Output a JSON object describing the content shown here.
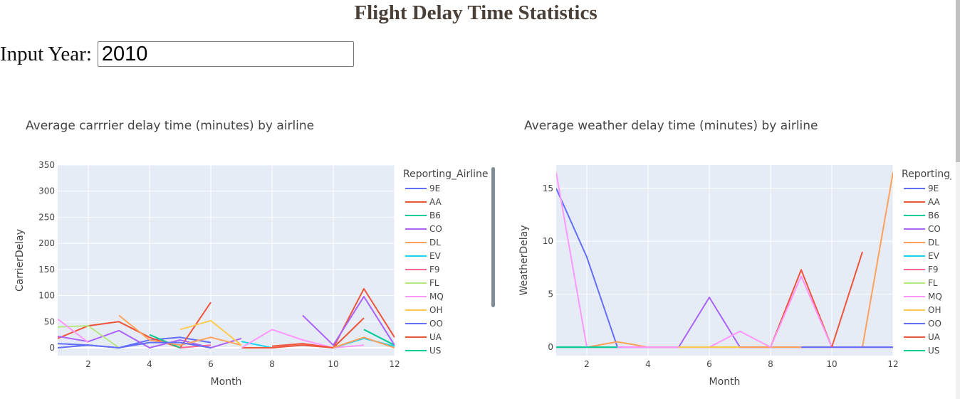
{
  "page": {
    "title": "Flight Delay Time Statistics",
    "year_label": "Input Year:",
    "year_value": "2010"
  },
  "colors": {
    "9E": "#636efa",
    "AA": "#EF553B",
    "B6": "#00cc96",
    "CO": "#ab63fa",
    "DL": "#FFA15A",
    "EV": "#19d3f3",
    "F9": "#FF6692",
    "FL": "#B6E880",
    "MQ": "#FF97FF",
    "OH": "#FECB52",
    "OO": "#636efa",
    "UA": "#EF553B",
    "US": "#00cc96"
  },
  "chart_data": [
    {
      "type": "line",
      "title": "Average carrrier delay time (minutes) by airline",
      "xlabel": "Month",
      "ylabel": "CarrierDelay",
      "xlim": [
        1,
        12
      ],
      "ylim": [
        -15,
        350
      ],
      "xticks": [
        2,
        4,
        6,
        8,
        10,
        12
      ],
      "yticks": [
        0,
        50,
        100,
        150,
        200,
        250,
        300,
        350
      ],
      "legend_title": "Reporting_Airline",
      "legend_placement": "right",
      "grid": true,
      "series": [
        {
          "name": "9E",
          "x": [
            1,
            2,
            3,
            4,
            5,
            6
          ],
          "y": [
            0,
            5,
            0,
            15,
            20,
            10
          ]
        },
        {
          "name": "AA",
          "x": [
            1,
            2,
            3,
            4,
            5,
            6
          ],
          "y": [
            18,
            42,
            50,
            20,
            0,
            87
          ]
        },
        {
          "name": "B6",
          "x": [
            4,
            5
          ],
          "y": [
            25,
            0
          ]
        },
        {
          "name": "CO",
          "x": [
            1,
            2,
            3,
            4,
            5,
            6,
            7
          ],
          "y": [
            22,
            12,
            33,
            0,
            15,
            0,
            18
          ]
        },
        {
          "name": "DL",
          "x": [
            3,
            4,
            5,
            6,
            7
          ],
          "y": [
            62,
            15,
            5,
            20,
            5
          ]
        },
        {
          "name": "EV",
          "x": [
            7,
            8
          ],
          "y": [
            12,
            0
          ]
        },
        {
          "name": "F9",
          "x": [
            5,
            6
          ],
          "y": [
            0,
            5
          ]
        },
        {
          "name": "FL",
          "x": [
            1,
            2,
            3
          ],
          "y": [
            40,
            42,
            0
          ]
        },
        {
          "name": "MQ",
          "x": [
            1,
            2
          ],
          "y": [
            55,
            10
          ]
        },
        {
          "name": "OH",
          "x": [
            5,
            6,
            7
          ],
          "y": [
            35,
            52,
            5
          ]
        },
        {
          "name": "OO",
          "x": [
            1,
            2,
            3,
            4,
            5,
            6
          ],
          "y": [
            8,
            5,
            0,
            10,
            10,
            0
          ]
        },
        {
          "name": "UA",
          "x": [
            7,
            8,
            9,
            10,
            11,
            12
          ],
          "y": [
            0,
            0,
            5,
            0,
            113,
            20
          ]
        },
        {
          "name": "US",
          "x": [
            11,
            12
          ],
          "y": [
            35,
            5
          ]
        },
        {
          "name": "CO",
          "x": [
            9,
            10,
            11,
            12
          ],
          "y": [
            62,
            5,
            98,
            5
          ]
        },
        {
          "name": "MQ",
          "x": [
            7,
            8,
            9,
            10,
            11
          ],
          "y": [
            0,
            35,
            15,
            0,
            5
          ]
        },
        {
          "name": "AA",
          "x": [
            8,
            9,
            10,
            11
          ],
          "y": [
            3,
            8,
            0,
            57
          ]
        },
        {
          "name": "EV",
          "x": [
            10,
            11,
            12
          ],
          "y": [
            0,
            18,
            3
          ]
        },
        {
          "name": "DL",
          "x": [
            10,
            11,
            12
          ],
          "y": [
            0,
            20,
            0
          ]
        }
      ]
    },
    {
      "type": "line",
      "title": "Average weather delay time (minutes) by airline",
      "xlabel": "Month",
      "ylabel": "WeatherDelay",
      "xlim": [
        1,
        12
      ],
      "ylim": [
        -0.8,
        17.2
      ],
      "xticks": [
        2,
        4,
        6,
        8,
        10,
        12
      ],
      "yticks": [
        0,
        5,
        10,
        15
      ],
      "legend_title": "Reporting_",
      "legend_placement": "right",
      "grid": true,
      "series": [
        {
          "name": "9E",
          "x": [
            1,
            2,
            3,
            4,
            5,
            6,
            7,
            8,
            9,
            10,
            11,
            12
          ],
          "y": [
            15,
            8.5,
            0,
            0,
            0,
            0,
            0,
            0,
            0,
            0,
            0,
            0
          ]
        },
        {
          "name": "AA",
          "x": [
            1,
            2,
            3,
            4,
            5,
            6,
            7,
            8,
            9,
            10
          ],
          "y": [
            0,
            0,
            0,
            0,
            0,
            0,
            0,
            0,
            7.3,
            0
          ]
        },
        {
          "name": "B6",
          "x": [
            1,
            2,
            3
          ],
          "y": [
            0,
            0,
            0
          ]
        },
        {
          "name": "CO",
          "x": [
            1,
            2,
            3,
            4,
            5,
            6,
            7,
            8,
            9,
            10,
            11,
            12
          ],
          "y": [
            0,
            0,
            0,
            0,
            0,
            4.7,
            0,
            0,
            0,
            0,
            0,
            0
          ]
        },
        {
          "name": "DL",
          "x": [
            1,
            2,
            3,
            4,
            5,
            6,
            7,
            8,
            9,
            10,
            11,
            12
          ],
          "y": [
            0,
            0,
            0.5,
            0,
            0,
            0,
            0,
            0,
            0,
            0,
            0,
            16.5
          ]
        },
        {
          "name": "EV",
          "x": [
            1,
            2,
            3
          ],
          "y": [
            0,
            0,
            0
          ]
        },
        {
          "name": "F9",
          "x": [
            2,
            3
          ],
          "y": [
            0,
            0
          ]
        },
        {
          "name": "FL",
          "x": [
            1,
            2,
            3
          ],
          "y": [
            0,
            0,
            0
          ]
        },
        {
          "name": "MQ",
          "x": [
            1,
            2,
            3,
            4,
            5,
            6,
            7,
            8,
            9,
            10,
            11,
            12
          ],
          "y": [
            16.5,
            0,
            0,
            0,
            0,
            0,
            1.5,
            0,
            6.7,
            0,
            0,
            0
          ]
        },
        {
          "name": "OH",
          "x": [
            5,
            6,
            7
          ],
          "y": [
            0,
            0,
            0
          ]
        },
        {
          "name": "OO",
          "x": [
            9,
            10,
            11,
            12
          ],
          "y": [
            0,
            0,
            0,
            0
          ]
        },
        {
          "name": "UA",
          "x": [
            10,
            11
          ],
          "y": [
            0,
            9
          ]
        },
        {
          "name": "US",
          "x": [
            1,
            2,
            3
          ],
          "y": [
            0,
            0,
            0
          ]
        }
      ]
    }
  ]
}
